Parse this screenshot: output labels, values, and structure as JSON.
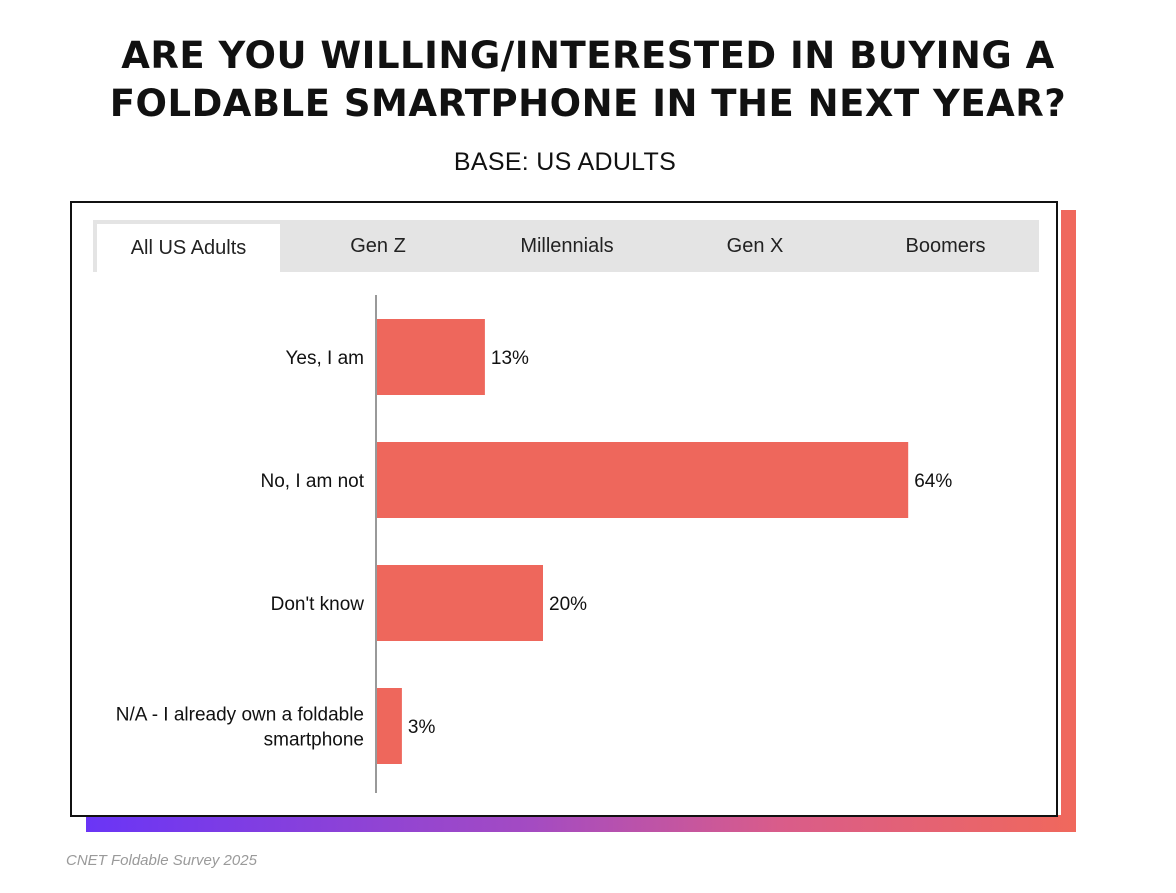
{
  "title_lines": [
    "ARE YOU WILLING/INTERESTED IN BUYING A",
    "FOLDABLE SMARTPHONE IN THE NEXT YEAR?"
  ],
  "subtitle": "BASE: US ADULTS",
  "tabs": [
    {
      "label": "All US Adults",
      "active": true
    },
    {
      "label": "Gen Z",
      "active": false
    },
    {
      "label": "Millennials",
      "active": false
    },
    {
      "label": "Gen X",
      "active": false
    },
    {
      "label": "Boomers",
      "active": false
    }
  ],
  "chart_data": {
    "type": "bar",
    "orientation": "horizontal",
    "categories": [
      [
        "Yes, I am"
      ],
      [
        "No, I am not"
      ],
      [
        "Don't know"
      ],
      [
        "N/A - I already own a foldable",
        "smartphone"
      ]
    ],
    "values": [
      13,
      64,
      20,
      3
    ],
    "value_labels": [
      "13%",
      "64%",
      "20%",
      "3%"
    ],
    "unit": "%",
    "xlim": [
      0,
      100
    ],
    "bar_color": "#ee675c",
    "grid": false,
    "legend": "none"
  },
  "source": "CNET  Foldable Survey 2025"
}
